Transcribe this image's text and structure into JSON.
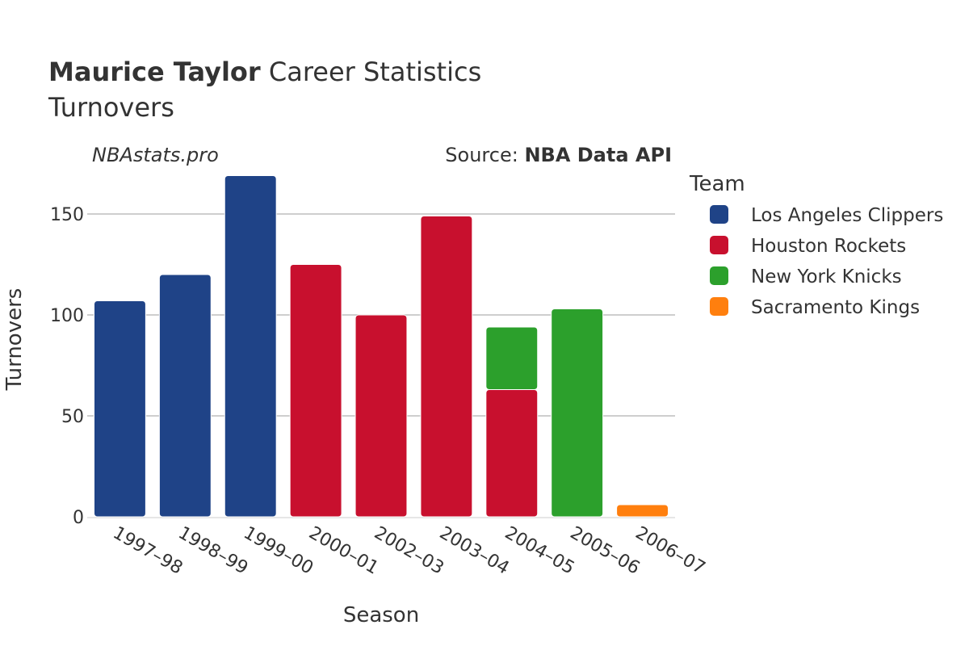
{
  "title": {
    "player": "Maurice Taylor",
    "rest": " Career Statistics",
    "subtitle": "Turnovers"
  },
  "credit_left": "NBAstats.pro",
  "credit_right_prefix": "Source: ",
  "credit_right_bold": "NBA Data API",
  "chart_data": {
    "type": "bar",
    "stacked": true,
    "categories": [
      "1997–98",
      "1998–99",
      "1999–00",
      "2000–01",
      "2002–03",
      "2003–04",
      "2004–05",
      "2005–06",
      "2006–07"
    ],
    "xlabel": "Season",
    "ylabel": "Turnovers",
    "ylim": [
      0,
      170
    ],
    "yticks": [
      0,
      50,
      100,
      150
    ],
    "grid": true,
    "legend_title": "Team",
    "legend_position": "right",
    "series": [
      {
        "name": "Los Angeles Clippers",
        "color": "#1f4387",
        "values": [
          107,
          120,
          169,
          0,
          0,
          0,
          0,
          0,
          0
        ]
      },
      {
        "name": "Houston Rockets",
        "color": "#c8102e",
        "values": [
          0,
          0,
          0,
          125,
          100,
          149,
          63,
          0,
          0
        ]
      },
      {
        "name": "New York Knicks",
        "color": "#2ca02c",
        "values": [
          0,
          0,
          0,
          0,
          0,
          0,
          31,
          103,
          0
        ]
      },
      {
        "name": "Sacramento Kings",
        "color": "#ff7f0e",
        "values": [
          0,
          0,
          0,
          0,
          0,
          0,
          0,
          0,
          6
        ]
      }
    ]
  }
}
